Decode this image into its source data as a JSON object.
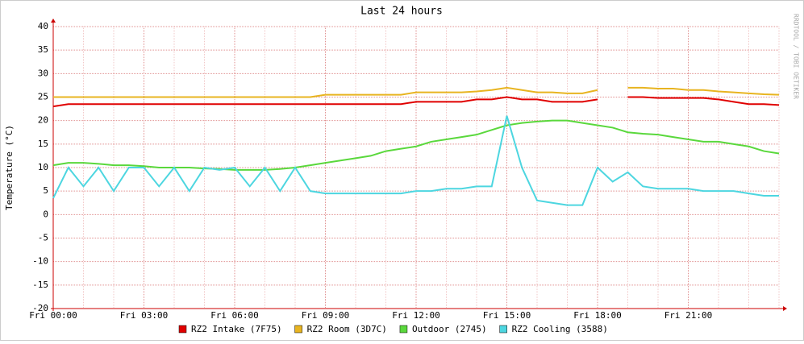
{
  "chart_data": {
    "type": "line",
    "title": "Last 24 hours",
    "y_label": "Temperature (°C)",
    "watermark": "RRDTOOL / TOBI OETIKER",
    "xlim": [
      0,
      24
    ],
    "xticks": [
      {
        "value": 0,
        "label": "Fri 00:00"
      },
      {
        "value": 3,
        "label": "Fri 03:00"
      },
      {
        "value": 6,
        "label": "Fri 06:00"
      },
      {
        "value": 9,
        "label": "Fri 09:00"
      },
      {
        "value": 12,
        "label": "Fri 12:00"
      },
      {
        "value": 15,
        "label": "Fri 15:00"
      },
      {
        "value": 18,
        "label": "Fri 18:00"
      },
      {
        "value": 21,
        "label": "Fri 21:00"
      }
    ],
    "ylim": [
      -20,
      40
    ],
    "yticks": [
      -20,
      -15,
      -10,
      -5,
      0,
      5,
      10,
      15,
      20,
      25,
      30,
      35,
      40
    ],
    "grid": true,
    "x": [
      0,
      0.5,
      1,
      1.5,
      2,
      2.5,
      3,
      3.5,
      4,
      4.5,
      5,
      5.5,
      6,
      6.5,
      7,
      7.5,
      8,
      8.5,
      9,
      9.5,
      10,
      10.5,
      11,
      11.5,
      12,
      12.5,
      13,
      13.5,
      14,
      14.5,
      15,
      15.5,
      16,
      16.5,
      17,
      17.5,
      18,
      18.5,
      19,
      19.5,
      20,
      20.5,
      21,
      21.5,
      22,
      22.5,
      23,
      23.5,
      24
    ],
    "series": [
      {
        "name": "RZ2 Intake (7F75)",
        "color": "#e00000",
        "values": [
          23,
          23.5,
          23.5,
          23.5,
          23.5,
          23.5,
          23.5,
          23.5,
          23.5,
          23.5,
          23.5,
          23.5,
          23.5,
          23.5,
          23.5,
          23.5,
          23.5,
          23.5,
          23.5,
          23.5,
          23.5,
          23.5,
          23.5,
          23.5,
          24,
          24,
          24,
          24,
          24.5,
          24.5,
          25,
          24.5,
          24.5,
          24,
          24,
          24,
          24.5,
          null,
          25,
          25,
          24.8,
          24.8,
          24.8,
          24.8,
          24.5,
          24,
          23.5,
          23.5,
          23.3
        ]
      },
      {
        "name": "RZ2 Room (3D7C)",
        "color": "#e8b420",
        "values": [
          25,
          25,
          25,
          25,
          25,
          25,
          25,
          25,
          25,
          25,
          25,
          25,
          25,
          25,
          25,
          25,
          25,
          25,
          25.5,
          25.5,
          25.5,
          25.5,
          25.5,
          25.5,
          26,
          26,
          26,
          26,
          26.2,
          26.5,
          27,
          26.5,
          26,
          26,
          25.8,
          25.8,
          26.5,
          null,
          27,
          27,
          26.8,
          26.8,
          26.5,
          26.5,
          26.2,
          26,
          25.8,
          25.6,
          25.5
        ]
      },
      {
        "name": "Outdoor (2745)",
        "color": "#5ad83c",
        "values": [
          10.5,
          11,
          11,
          10.8,
          10.5,
          10.5,
          10.3,
          10,
          10,
          10,
          9.8,
          9.7,
          9.5,
          9.5,
          9.5,
          9.7,
          10,
          10.5,
          11,
          11.5,
          12,
          12.5,
          13.5,
          14,
          14.5,
          15.5,
          16,
          16.5,
          17,
          18,
          19,
          19.5,
          19.8,
          20,
          20,
          19.5,
          19,
          18.5,
          17.5,
          17.2,
          17,
          16.5,
          16,
          15.5,
          15.5,
          15,
          14.5,
          13.5,
          13
        ]
      },
      {
        "name": "RZ2 Cooling (3588)",
        "color": "#4dd6e0",
        "values": [
          3.5,
          10,
          6,
          10,
          5,
          10,
          10,
          6,
          10,
          5,
          10,
          9.5,
          10,
          6,
          10,
          5,
          10,
          5,
          4.5,
          4.5,
          4.5,
          4.5,
          4.5,
          4.5,
          5,
          5,
          5.5,
          5.5,
          6,
          6,
          21,
          10,
          3,
          2.5,
          2,
          2,
          10,
          7,
          9,
          6,
          5.5,
          5.5,
          5.5,
          5,
          5,
          5,
          4.5,
          4,
          4
        ]
      }
    ]
  }
}
